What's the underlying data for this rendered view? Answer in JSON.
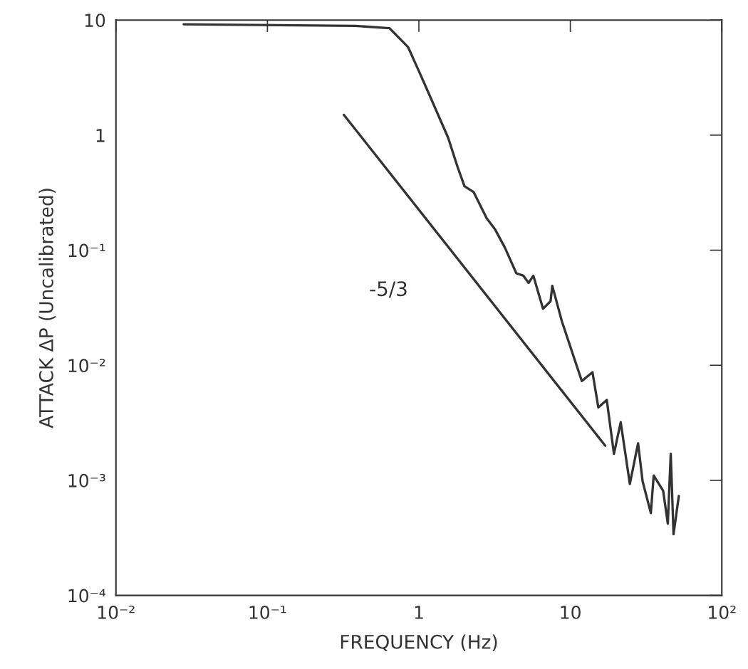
{
  "chart_data": {
    "type": "line",
    "xlabel": "FREQUENCY (Hz)",
    "ylabel": "ATTACK ΔP (Uncalibrated)",
    "log": "xy",
    "grid": false,
    "legend": false,
    "marker": "none",
    "line_style": "solid",
    "xlim": [
      0.01,
      100
    ],
    "ylim": [
      0.0001,
      10
    ],
    "xticks": [
      {
        "value": 0.01,
        "label": "10⁻²"
      },
      {
        "value": 0.1,
        "label": "10⁻¹"
      },
      1,
      10,
      {
        "value": 100,
        "label": "10²"
      }
    ],
    "yticks": [
      {
        "value": 0.0001,
        "label": "10⁻⁴"
      },
      {
        "value": 0.001,
        "label": "10⁻³"
      },
      {
        "value": 0.01,
        "label": "10⁻²"
      },
      {
        "value": 0.1,
        "label": "10⁻¹"
      },
      1,
      10
    ],
    "series": [
      {
        "color": "#333333",
        "x": [
          0.028,
          0.38,
          0.64,
          0.85,
          1.0,
          1.18,
          1.56,
          1.8,
          2.0,
          2.3,
          2.8,
          3.2,
          3.7,
          4.4,
          4.9,
          5.3,
          5.7,
          6.6,
          7.4,
          7.6,
          8.8,
          11.9,
          14,
          15.3,
          17.4,
          19.4,
          21.5,
          24.7,
          28,
          30,
          34,
          35.5,
          41,
          44,
          46,
          48,
          52
        ],
        "values": [
          9.2,
          8.9,
          8.5,
          5.8,
          3.6,
          2.2,
          0.95,
          0.53,
          0.36,
          0.32,
          0.19,
          0.15,
          0.105,
          0.063,
          0.06,
          0.052,
          0.06,
          0.031,
          0.036,
          0.049,
          0.024,
          0.0073,
          0.0087,
          0.0043,
          0.005,
          0.0017,
          0.0032,
          0.00093,
          0.0021,
          0.00098,
          0.00052,
          0.0011,
          0.00081,
          0.00042,
          0.0017,
          0.00034,
          0.00073
        ]
      },
      {
        "color": "#333333",
        "x": [
          0.32,
          17
        ],
        "values": [
          1.5,
          0.002
        ]
      }
    ],
    "annotations": [
      "-5/3"
    ]
  }
}
